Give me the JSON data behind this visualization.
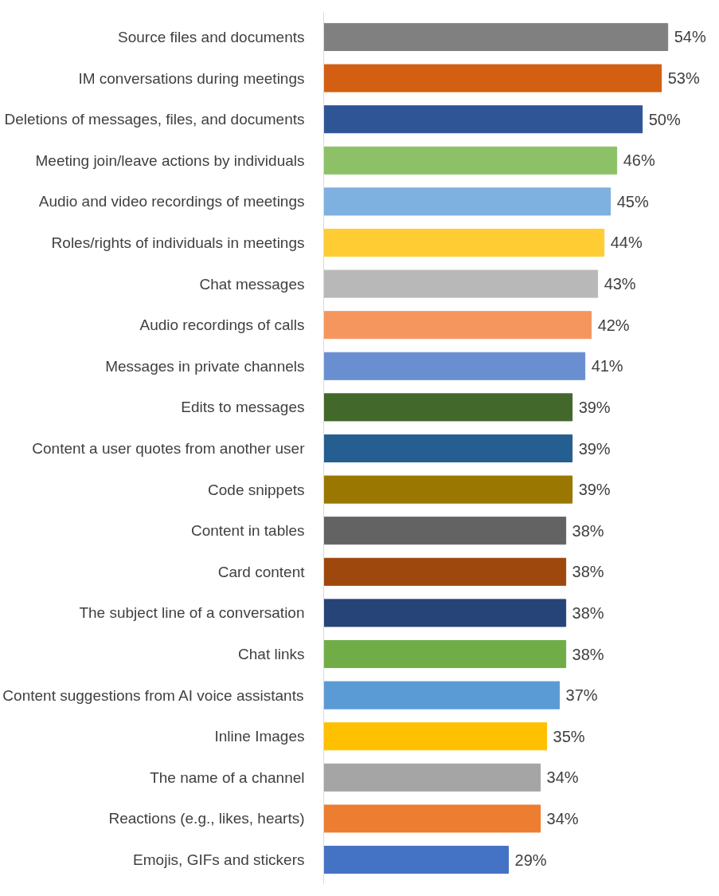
{
  "chart_data": {
    "type": "bar",
    "orientation": "horizontal",
    "categories": [
      "Source files and documents",
      "IM conversations during meetings",
      "Deletions of messages, files, and documents",
      "Meeting join/leave actions by individuals",
      "Audio and video recordings of meetings",
      "Roles/rights of individuals in meetings",
      "Chat messages",
      "Audio recordings of calls",
      "Messages in private channels",
      "Edits to messages",
      "Content a user quotes from another user",
      "Code snippets",
      "Content in tables",
      "Card content",
      "The subject line of a conversation",
      "Chat links",
      "Content suggestions from AI voice assistants",
      "Inline Images",
      "The name of a channel",
      "Reactions (e.g., likes, hearts)",
      "Emojis, GIFs and stickers"
    ],
    "values": [
      54,
      53,
      50,
      46,
      45,
      44,
      43,
      42,
      41,
      39,
      39,
      39,
      38,
      38,
      38,
      38,
      37,
      35,
      34,
      34,
      29
    ],
    "value_labels": [
      "54%",
      "53%",
      "50%",
      "46%",
      "45%",
      "44%",
      "43%",
      "42%",
      "41%",
      "39%",
      "39%",
      "39%",
      "38%",
      "38%",
      "38%",
      "38%",
      "37%",
      "35%",
      "34%",
      "34%",
      "29%"
    ],
    "colors": [
      "#808080",
      "#d35f12",
      "#2f5597",
      "#8cc168",
      "#7eb0e0",
      "#ffcd33",
      "#b8b8b8",
      "#f4965e",
      "#6a8fd0",
      "#43682b",
      "#255e91",
      "#9a7700",
      "#636363",
      "#9e480e",
      "#264478",
      "#70ad47",
      "#5b9bd5",
      "#ffc000",
      "#a5a5a5",
      "#ed7d31",
      "#4472c4"
    ],
    "grid": false
  }
}
